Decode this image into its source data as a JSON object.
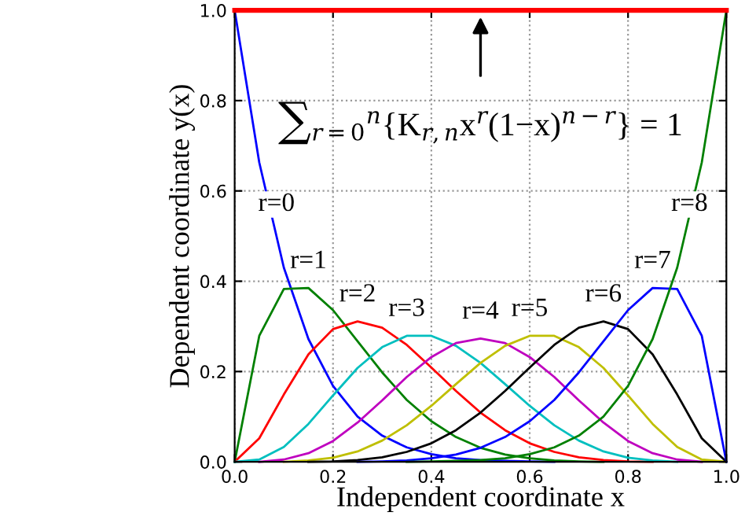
{
  "chart_data": {
    "type": "line",
    "xlabel": "Independent coordinate x",
    "ylabel": "Dependent coordinate y(x)",
    "x": [
      0,
      0.05,
      0.1,
      0.15,
      0.2,
      0.25,
      0.3,
      0.35,
      0.4,
      0.45,
      0.5,
      0.55,
      0.6,
      0.65,
      0.7,
      0.75,
      0.8,
      0.85,
      0.9,
      0.95,
      1
    ],
    "series": [
      {
        "color": "#0000ff",
        "values": [
          1,
          0.663,
          0.43,
          0.272,
          0.168,
          0.1,
          0.058,
          0.032,
          0.017,
          0.008,
          0.004,
          0.002,
          0.001,
          0,
          null,
          null,
          null,
          null,
          null,
          null,
          null
        ]
      },
      {
        "color": "#008000",
        "values": [
          0,
          0.279,
          0.383,
          0.385,
          0.336,
          0.267,
          0.198,
          0.137,
          0.09,
          0.055,
          0.031,
          0.016,
          0.008,
          0.003,
          0.001,
          0,
          null,
          null,
          null,
          null,
          null
        ]
      },
      {
        "color": "#ff0000",
        "values": [
          0,
          0.052,
          0.149,
          0.238,
          0.294,
          0.311,
          0.297,
          0.259,
          0.209,
          0.157,
          0.109,
          0.07,
          0.041,
          0.022,
          0.01,
          0.004,
          0.001,
          0,
          null,
          null,
          null
        ]
      },
      {
        "color": "#00bfbf",
        "values": [
          0,
          0.005,
          0.033,
          0.084,
          0.147,
          0.208,
          0.254,
          0.279,
          0.279,
          0.257,
          0.219,
          0.172,
          0.124,
          0.081,
          0.047,
          0.023,
          0.009,
          0.003,
          0,
          null,
          null
        ]
      },
      {
        "color": "#bf00bf",
        "values": [
          null,
          0,
          0.005,
          0.019,
          0.046,
          0.087,
          0.136,
          0.188,
          0.232,
          0.263,
          0.273,
          0.263,
          0.232,
          0.188,
          0.136,
          0.087,
          0.046,
          0.019,
          0.005,
          0,
          null
        ]
      },
      {
        "color": "#bfbf00",
        "values": [
          null,
          null,
          0,
          0.003,
          0.009,
          0.023,
          0.047,
          0.081,
          0.124,
          0.172,
          0.219,
          0.257,
          0.279,
          0.279,
          0.254,
          0.208,
          0.147,
          0.084,
          0.033,
          0.005,
          0
        ]
      },
      {
        "color": "#000000",
        "values": [
          null,
          null,
          null,
          0,
          0.001,
          0.004,
          0.01,
          0.022,
          0.041,
          0.07,
          0.109,
          0.157,
          0.209,
          0.259,
          0.297,
          0.311,
          0.294,
          0.238,
          0.149,
          0.052,
          0
        ]
      },
      {
        "color": "#0000ff",
        "values": [
          null,
          null,
          null,
          null,
          null,
          0,
          0.001,
          0.003,
          0.008,
          0.016,
          0.031,
          0.055,
          0.09,
          0.137,
          0.198,
          0.267,
          0.336,
          0.385,
          0.383,
          0.279,
          0
        ]
      },
      {
        "color": "#008000",
        "values": [
          null,
          null,
          null,
          null,
          null,
          null,
          null,
          0,
          0.001,
          0.002,
          0.004,
          0.008,
          0.017,
          0.032,
          0.058,
          0.1,
          0.168,
          0.272,
          0.43,
          0.663,
          1
        ]
      },
      {
        "color": "#ff0000",
        "x": [
          0,
          1
        ],
        "values": [
          1,
          1
        ]
      }
    ],
    "annotations": [
      {
        "text": "r=0",
        "x": 0.085,
        "y": 0.57
      },
      "r=1",
      "r=2",
      "r=3",
      "r=4",
      "r=5",
      "r=6",
      "r=7",
      {
        "text": "r=8",
        "x": 0.925,
        "y": 0.57
      },
      "∑$_{r=0}$$^{n}${K$_{r,n}$x$^{r}$(1−x)$^{n−r}$} = 1"
    ],
    "xlim": [
      0,
      1
    ],
    "ylim": [
      0,
      1
    ],
    "xticks": [
      {
        "value": 0,
        "label": "0.0"
      },
      {
        "value": 0.2,
        "label": "0.2"
      },
      {
        "value": 0.4,
        "label": "0.4"
      },
      {
        "value": 0.6,
        "label": "0.6"
      },
      {
        "value": 0.8,
        "label": "0.8"
      },
      {
        "value": 1,
        "label": "1.0"
      }
    ],
    "yticks": [
      {
        "value": 0,
        "label": "0.0"
      },
      {
        "value": 0.2,
        "label": "0.2"
      },
      {
        "value": 0.4,
        "label": "0.4"
      },
      {
        "value": 0.6,
        "label": "0.6"
      },
      {
        "value": 0.8,
        "label": "0.8"
      },
      {
        "value": 1,
        "label": "1.0"
      }
    ],
    "grid": true,
    "legend": false,
    "marker": "none",
    "line_style": "solid"
  }
}
